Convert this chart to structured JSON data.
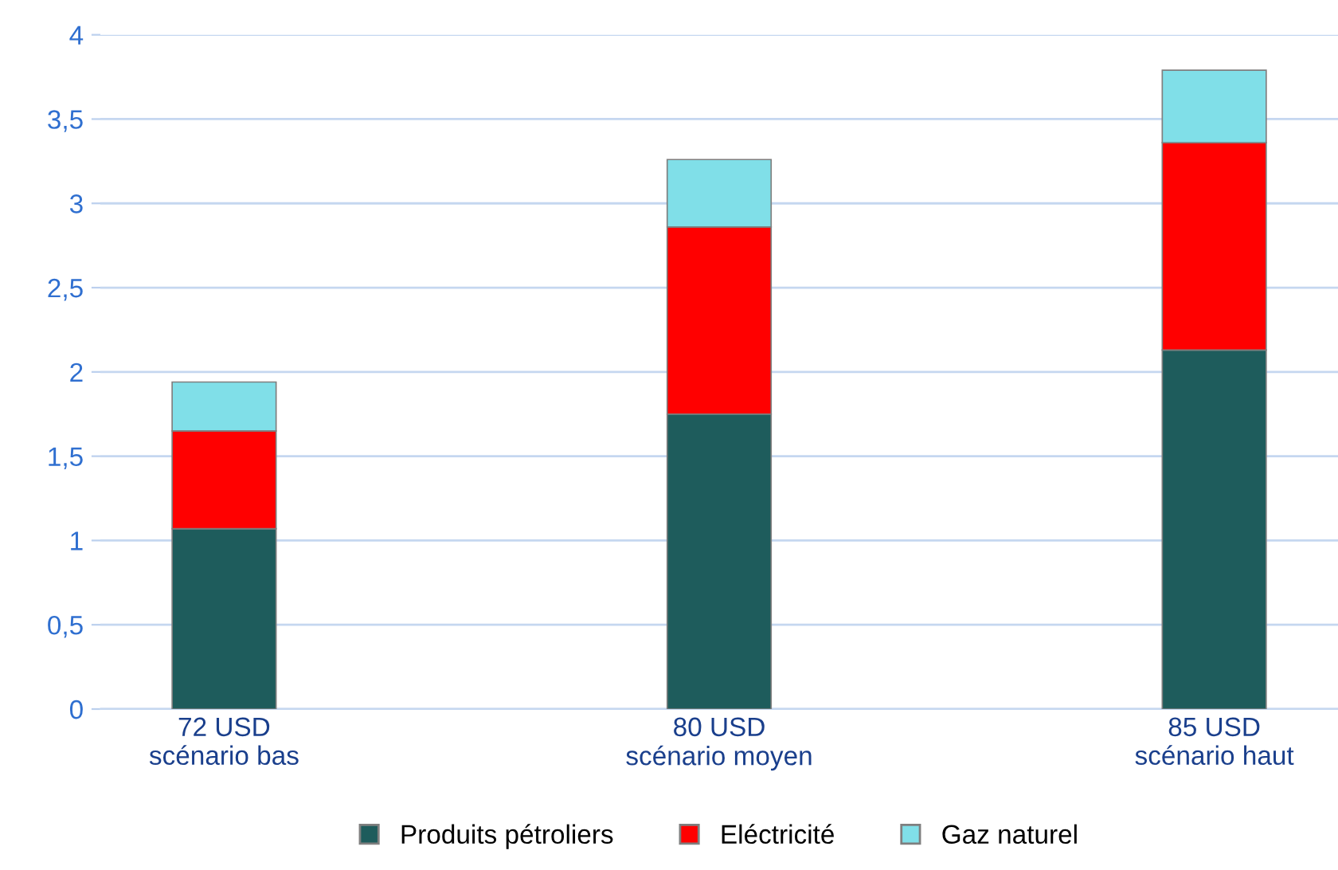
{
  "chart_data": {
    "type": "bar",
    "stacked": true,
    "categories": [
      "72 USD\nscénario bas",
      null,
      "80 USD\nscénario moyen",
      null,
      "85 USD\nscénario haut"
    ],
    "series": [
      {
        "name": "Produits pétroliers",
        "color": "#1e5c5c",
        "values": [
          1.07,
          null,
          1.75,
          null,
          2.13
        ]
      },
      {
        "name": "Eléctricité",
        "color": "#ff0000",
        "values": [
          0.58,
          null,
          1.11,
          null,
          1.23
        ]
      },
      {
        "name": "Gaz naturel",
        "color": "#80dfe8",
        "values": [
          0.29,
          null,
          0.4,
          null,
          0.43
        ]
      }
    ],
    "ylim": [
      0,
      4
    ],
    "yticks": [
      0,
      {
        "value": 0.5,
        "label": "0,5"
      },
      1,
      {
        "value": 1.5,
        "label": "1,5"
      },
      2,
      {
        "value": 2.5,
        "label": "2,5"
      },
      3,
      {
        "value": 3.5,
        "label": "3,5"
      },
      4
    ],
    "grid": "y",
    "legend": "bottom"
  }
}
